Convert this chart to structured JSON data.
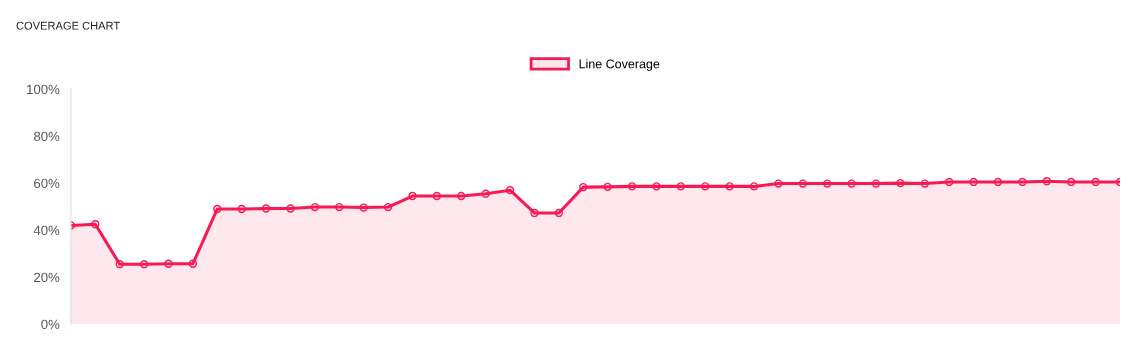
{
  "chart_data": {
    "type": "area",
    "title": "COVERAGE CHART",
    "categories": [
      null,
      null,
      null,
      null,
      null,
      null,
      null,
      null,
      null,
      null,
      null,
      null,
      null,
      null,
      null,
      null,
      null,
      null,
      null,
      null,
      null,
      null,
      null,
      null,
      null,
      null,
      null,
      null,
      null,
      null,
      null,
      null,
      null,
      null,
      null,
      null,
      null,
      null,
      null,
      null,
      null,
      null,
      null,
      null
    ],
    "series": [
      {
        "name": "Line Coverage",
        "color": "#f71a55",
        "values": [
          42,
          42.5,
          25.5,
          25.5,
          25.7,
          25.7,
          49,
          49,
          49.2,
          49.2,
          49.8,
          49.8,
          49.6,
          49.8,
          54.5,
          54.5,
          54.5,
          55.5,
          57,
          47.3,
          47.3,
          58.3,
          58.4,
          58.6,
          58.6,
          58.6,
          58.6,
          58.6,
          58.6,
          59.8,
          59.8,
          59.8,
          59.8,
          59.8,
          60,
          59.8,
          60.5,
          60.5,
          60.5,
          60.5,
          60.8,
          60.5,
          60.5,
          60.5
        ]
      }
    ],
    "ylim": [
      0,
      100
    ],
    "yticks": [
      {
        "value": 0,
        "label": "0%"
      },
      {
        "value": 20,
        "label": "20%"
      },
      {
        "value": 40,
        "label": "40%"
      },
      {
        "value": 60,
        "label": "60%"
      },
      {
        "value": 80,
        "label": "80%"
      },
      {
        "value": 100,
        "label": "100%"
      }
    ],
    "tick_labels": "y",
    "legend": "top",
    "marker": "circle",
    "grid": false
  }
}
